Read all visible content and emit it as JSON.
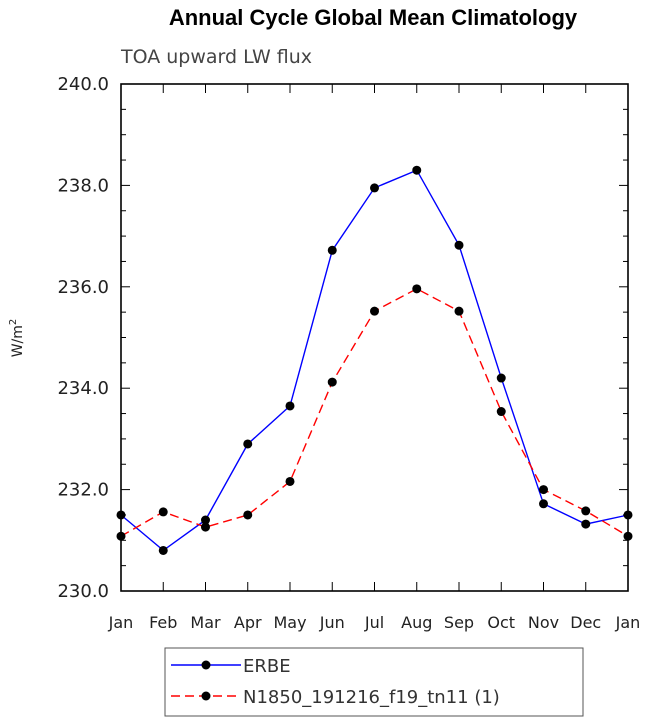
{
  "chart_data": {
    "type": "line",
    "title": "Annual Cycle Global Mean Climatology",
    "subtitle": "TOA upward LW flux",
    "ylabel": "W/m",
    "ylabel_superscript": "2",
    "ylim": [
      230.0,
      240.0
    ],
    "yticks": [
      "230.0",
      "232.0",
      "234.0",
      "236.0",
      "238.0",
      "240.0"
    ],
    "categories": [
      "Jan",
      "Feb",
      "Mar",
      "Apr",
      "May",
      "Jun",
      "Jul",
      "Aug",
      "Sep",
      "Oct",
      "Nov",
      "Dec",
      "Jan"
    ],
    "grid": false,
    "legend_position": "bottom",
    "series": [
      {
        "name": "ERBE",
        "color": "#0000ff",
        "line_style": "solid",
        "marker": "filled-circle",
        "values": [
          231.5,
          230.8,
          231.4,
          232.9,
          233.65,
          236.72,
          237.95,
          238.3,
          236.82,
          234.2,
          231.72,
          231.32,
          231.5
        ]
      },
      {
        "name": "N1850_191216_f19_tn11 (1)",
        "color": "#ff0000",
        "line_style": "dashed",
        "marker": "filled-circle",
        "values": [
          231.08,
          231.56,
          231.26,
          231.5,
          232.16,
          234.12,
          235.52,
          235.96,
          235.52,
          233.54,
          232.0,
          231.58,
          231.08
        ]
      }
    ]
  }
}
